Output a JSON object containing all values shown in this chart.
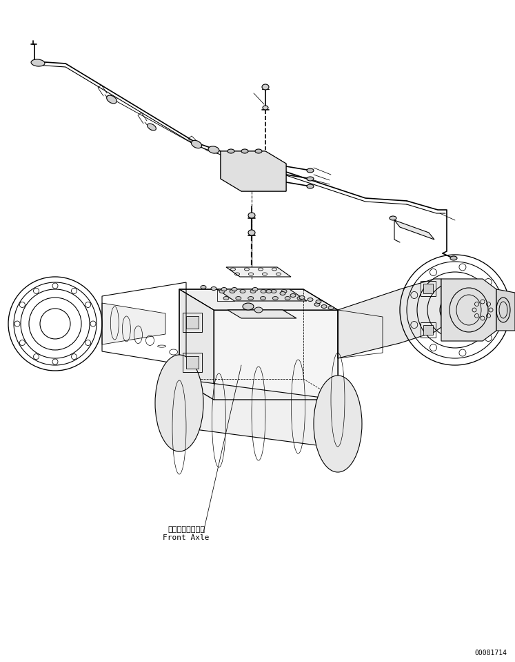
{
  "background_color": "#ffffff",
  "line_color": "#000000",
  "line_width": 0.8,
  "label_japanese": "フロントアクスル",
  "label_english": "Front Axle",
  "watermark": "00081714",
  "fig_width": 7.47,
  "fig_height": 9.59,
  "dpi": 100
}
